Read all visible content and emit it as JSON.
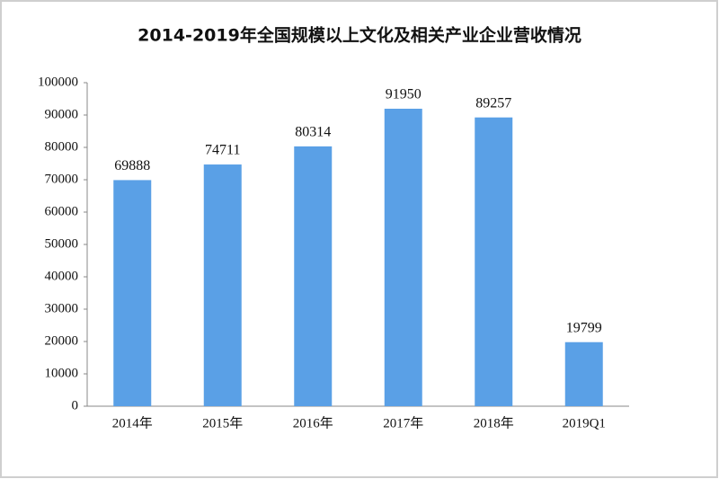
{
  "chart_data": {
    "type": "bar",
    "title": "2014-2019年全国规模以上文化及相关产业企业营收情况",
    "categories": [
      "2014年",
      "2015年",
      "2016年",
      "2017年",
      "2018年",
      "2019Q1"
    ],
    "values": [
      69888,
      74711,
      80314,
      91950,
      89257,
      19799
    ],
    "color": "#5aa0e6",
    "ylim": [
      0,
      100000
    ],
    "yticks": [
      0,
      10000,
      20000,
      30000,
      40000,
      50000,
      60000,
      70000,
      80000,
      90000,
      100000
    ],
    "grid": false
  }
}
